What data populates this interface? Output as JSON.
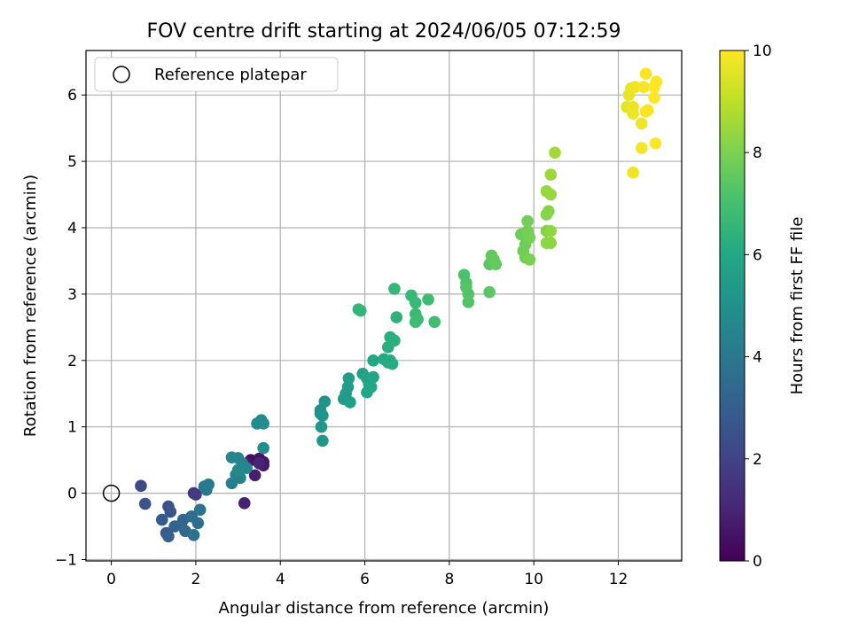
{
  "chart_data": {
    "type": "scatter",
    "title": "FOV centre drift starting at 2024/06/05 07:12:59",
    "xlabel": "Angular distance from reference (arcmin)",
    "ylabel": "Rotation from reference (arcmin)",
    "xlim": [
      -0.6,
      13.5
    ],
    "ylim": [
      -1.02,
      6.67
    ],
    "xticks": [
      "0",
      "2",
      "4",
      "6",
      "8",
      "10",
      "12"
    ],
    "yticks": [
      "−1",
      "0",
      "1",
      "2",
      "3",
      "4",
      "5",
      "6"
    ],
    "grid": true,
    "legend": {
      "position": "top-left",
      "entries": [
        "Reference platepar"
      ]
    },
    "reference_point": {
      "x": 0,
      "y": 0
    },
    "colorbar": {
      "label": "Hours from first FF file",
      "colormap": "viridis",
      "range": [
        0,
        10
      ],
      "ticks": [
        "0",
        "2",
        "4",
        "6",
        "8",
        "10"
      ]
    },
    "series": [
      {
        "points": [
          [
            3.3,
            0.5,
            0.3
          ],
          [
            3.5,
            0.52,
            0.4
          ],
          [
            3.6,
            0.47,
            0.5
          ],
          [
            3.6,
            0.42,
            0.6
          ],
          [
            3.2,
            0.45,
            0.7
          ],
          [
            3.4,
            0.27,
            0.8
          ],
          [
            3.15,
            -0.15,
            0.9
          ],
          [
            3.5,
            0.45,
            1.0
          ],
          [
            1.95,
            0.0,
            1.5
          ],
          [
            2.0,
            -0.02,
            1.7
          ],
          [
            0.7,
            0.11,
            2.3
          ],
          [
            0.8,
            -0.16,
            2.5
          ],
          [
            1.35,
            -0.2,
            2.6
          ],
          [
            1.4,
            -0.28,
            2.7
          ],
          [
            1.2,
            -0.4,
            2.8
          ],
          [
            1.3,
            -0.6,
            2.9
          ],
          [
            1.35,
            -0.65,
            3.0
          ],
          [
            1.5,
            -0.5,
            3.1
          ],
          [
            1.65,
            -0.48,
            3.2
          ],
          [
            1.7,
            -0.4,
            3.3
          ],
          [
            1.75,
            -0.57,
            3.4
          ],
          [
            1.9,
            -0.35,
            3.5
          ],
          [
            2.05,
            -0.45,
            3.6
          ],
          [
            1.95,
            -0.63,
            3.7
          ],
          [
            2.1,
            -0.25,
            3.8
          ],
          [
            2.25,
            0.05,
            3.9
          ],
          [
            2.2,
            0.1,
            4.0
          ],
          [
            2.3,
            0.13,
            4.1
          ],
          [
            2.85,
            0.15,
            4.2
          ],
          [
            2.95,
            0.28,
            4.3
          ],
          [
            3.05,
            0.23,
            4.35
          ],
          [
            3.1,
            0.45,
            4.4
          ],
          [
            3.0,
            0.53,
            4.45
          ],
          [
            2.85,
            0.54,
            4.5
          ],
          [
            3.15,
            0.4,
            4.55
          ],
          [
            3.2,
            0.38,
            4.6
          ],
          [
            3.0,
            0.35,
            4.65
          ],
          [
            3.45,
            1.05,
            4.75
          ],
          [
            3.55,
            1.1,
            4.8
          ],
          [
            3.6,
            1.05,
            4.85
          ],
          [
            3.6,
            0.68,
            4.9
          ],
          [
            4.95,
            1.25,
            5.0
          ],
          [
            4.95,
            1.2,
            5.05
          ],
          [
            5.05,
            1.38,
            5.1
          ],
          [
            5.0,
            1.17,
            5.15
          ],
          [
            4.97,
            1.0,
            5.2
          ],
          [
            5.0,
            0.79,
            5.25
          ],
          [
            5.5,
            1.42,
            5.4
          ],
          [
            5.55,
            1.5,
            5.45
          ],
          [
            5.6,
            1.6,
            5.5
          ],
          [
            5.62,
            1.73,
            5.55
          ],
          [
            5.65,
            1.37,
            5.6
          ],
          [
            5.95,
            1.8,
            5.7
          ],
          [
            6.05,
            1.73,
            5.75
          ],
          [
            6.1,
            1.64,
            5.8
          ],
          [
            6.15,
            1.6,
            5.85
          ],
          [
            6.2,
            1.75,
            5.9
          ],
          [
            6.05,
            1.52,
            5.95
          ],
          [
            6.2,
            2.0,
            6.0
          ],
          [
            6.45,
            2.02,
            6.05
          ],
          [
            6.55,
            1.97,
            6.1
          ],
          [
            6.6,
            2.0,
            6.12
          ],
          [
            6.65,
            1.95,
            6.15
          ],
          [
            6.55,
            2.2,
            6.2
          ],
          [
            6.6,
            2.35,
            6.25
          ],
          [
            6.7,
            2.3,
            6.3
          ],
          [
            6.75,
            2.65,
            6.4
          ],
          [
            5.85,
            2.77,
            6.5
          ],
          [
            5.9,
            2.75,
            6.55
          ],
          [
            6.7,
            3.08,
            6.6
          ],
          [
            7.1,
            2.98,
            6.65
          ],
          [
            7.2,
            2.87,
            6.7
          ],
          [
            7.2,
            2.7,
            6.75
          ],
          [
            7.25,
            2.62,
            6.8
          ],
          [
            7.2,
            2.58,
            6.82
          ],
          [
            7.5,
            2.92,
            6.85
          ],
          [
            7.65,
            2.58,
            6.9
          ],
          [
            8.35,
            3.29,
            7.1
          ],
          [
            8.4,
            3.17,
            7.15
          ],
          [
            8.45,
            3.0,
            7.2
          ],
          [
            8.45,
            2.88,
            7.25
          ],
          [
            8.4,
            3.1,
            7.3
          ],
          [
            8.95,
            3.03,
            7.4
          ],
          [
            8.95,
            3.45,
            7.45
          ],
          [
            9.0,
            3.58,
            7.5
          ],
          [
            9.05,
            3.48,
            7.55
          ],
          [
            9.1,
            3.45,
            7.6
          ],
          [
            9.05,
            3.52,
            7.62
          ],
          [
            9.7,
            3.9,
            7.7
          ],
          [
            9.75,
            3.65,
            7.75
          ],
          [
            9.8,
            3.75,
            7.8
          ],
          [
            9.8,
            3.55,
            7.82
          ],
          [
            9.85,
            4.1,
            7.85
          ],
          [
            9.85,
            3.95,
            7.9
          ],
          [
            9.9,
            3.85,
            7.95
          ],
          [
            9.9,
            3.52,
            8.0
          ],
          [
            10.3,
            3.95,
            8.1
          ],
          [
            10.3,
            4.2,
            8.15
          ],
          [
            10.35,
            4.25,
            8.2
          ],
          [
            10.3,
            3.77,
            8.25
          ],
          [
            10.4,
            3.77,
            8.3
          ],
          [
            10.4,
            3.95,
            8.35
          ],
          [
            10.3,
            4.55,
            8.4
          ],
          [
            10.4,
            4.5,
            8.45
          ],
          [
            10.4,
            4.8,
            8.5
          ],
          [
            10.5,
            5.13,
            8.6
          ],
          [
            12.2,
            5.82,
            9.6
          ],
          [
            12.25,
            6.0,
            9.65
          ],
          [
            12.3,
            6.1,
            9.7
          ],
          [
            12.35,
            5.82,
            9.72
          ],
          [
            12.35,
            5.72,
            9.75
          ],
          [
            12.4,
            6.12,
            9.78
          ],
          [
            12.35,
            4.83,
            9.8
          ],
          [
            12.55,
            5.57,
            9.82
          ],
          [
            12.55,
            5.2,
            9.85
          ],
          [
            12.6,
            6.12,
            9.88
          ],
          [
            12.65,
            5.75,
            9.9
          ],
          [
            12.7,
            5.77,
            9.92
          ],
          [
            12.65,
            6.32,
            9.94
          ],
          [
            12.85,
            5.96,
            9.96
          ],
          [
            12.85,
            6.12,
            9.98
          ],
          [
            12.9,
            6.2,
            9.99
          ],
          [
            12.88,
            5.27,
            10.0
          ]
        ]
      }
    ]
  }
}
